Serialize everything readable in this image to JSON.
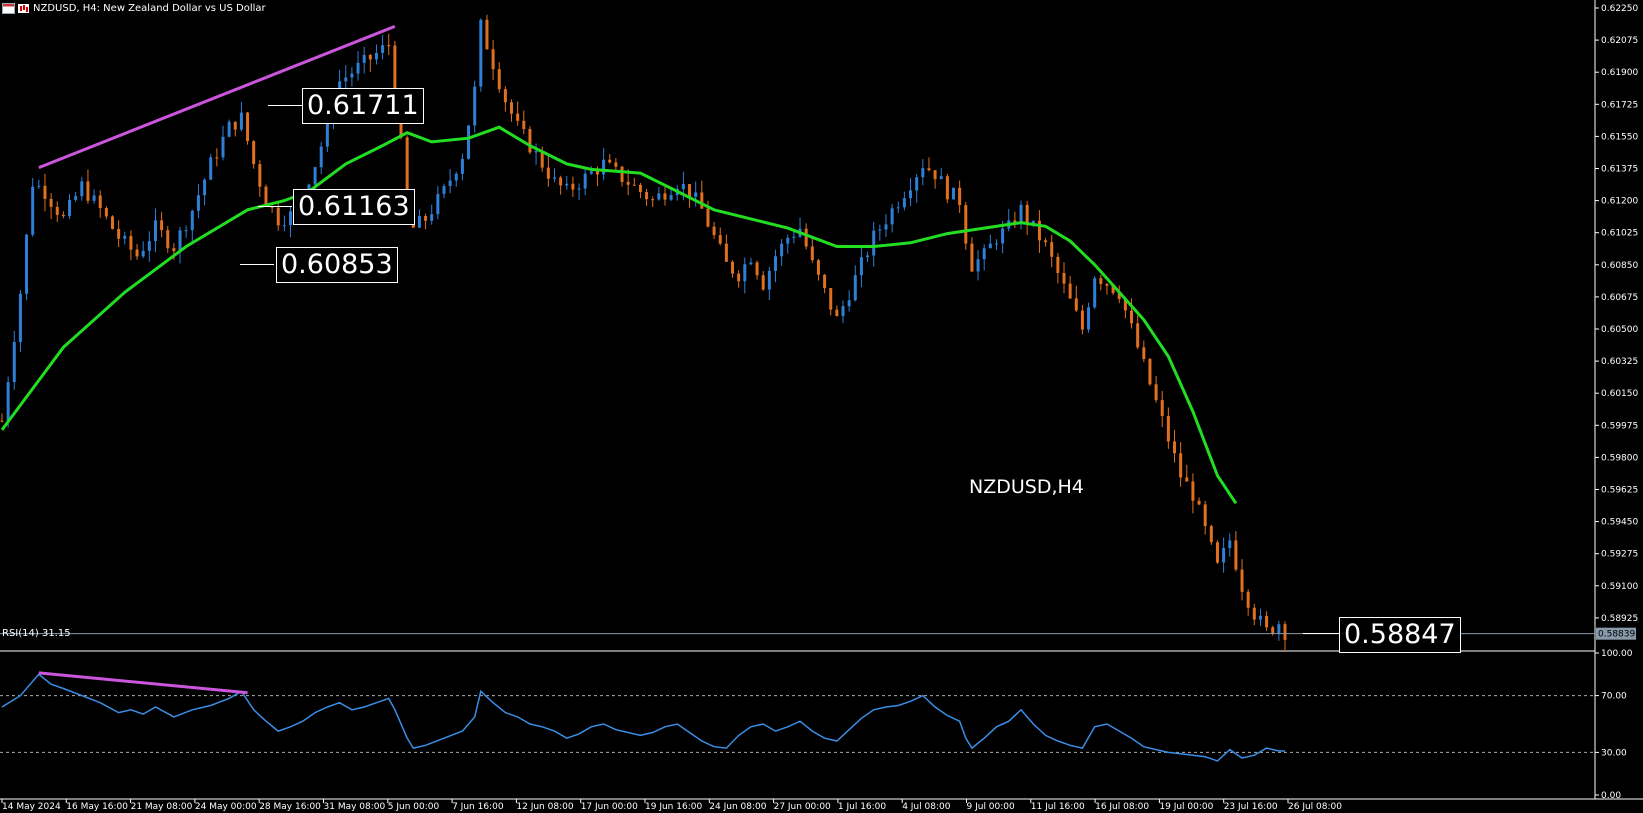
{
  "header": {
    "symbol_line": "NZDUSD, H4:  New Zealand Dollar vs US Dollar",
    "icons": [
      "chart-window-icon",
      "candlestick-icon"
    ]
  },
  "symbol_label": "NZDUSD,H4",
  "price_boxes": [
    {
      "label": "0.61711",
      "value": 0.61711
    },
    {
      "label": "0.61163",
      "value": 0.61163
    },
    {
      "label": "0.60853",
      "value": 0.60853
    },
    {
      "label": "0.58847",
      "value": 0.58847
    }
  ],
  "current_price_tag": "0.58839",
  "rsi_header": "RSI(14) 31.15",
  "colors": {
    "background": "#000000",
    "bull": "#2f7fd6",
    "bear": "#e07020",
    "ma": "#22dd22",
    "trendline": "#cc55dd",
    "rsi_line": "#3a8ee6",
    "axis_text": "#ffffff"
  },
  "chart_data": [
    {
      "type": "candlestick",
      "title": "NZDUSD, H4:  New Zealand Dollar vs US Dollar",
      "ylim": [
        0.5875,
        0.6225
      ],
      "y_ticks": [
        "0.62250",
        "0.62075",
        "0.61900",
        "0.61725",
        "0.61550",
        "0.61375",
        "0.61200",
        "0.61025",
        "0.60850",
        "0.60675",
        "0.60500",
        "0.60325",
        "0.60150",
        "0.59975",
        "0.59800",
        "0.59625",
        "0.59450",
        "0.59275",
        "0.59100",
        "0.58925"
      ],
      "x_ticks": [
        "14 May 2024",
        "16 May 16:00",
        "21 May 08:00",
        "24 May 00:00",
        "28 May 16:00",
        "31 May 08:00",
        "5 Jun 00:00",
        "7 Jun 16:00",
        "12 Jun 08:00",
        "17 Jun 00:00",
        "19 Jun 16:00",
        "24 Jun 08:00",
        "27 Jun 00:00",
        "1 Jul 16:00",
        "4 Jul 08:00",
        "9 Jul 00:00",
        "11 Jul 16:00",
        "16 Jul 08:00",
        "19 Jul 00:00",
        "23 Jul 16:00",
        "26 Jul 08:00"
      ],
      "close_path": [
        [
          0,
          0.6
        ],
        [
          3,
          0.607
        ],
        [
          5,
          0.613
        ],
        [
          7,
          0.6125
        ],
        [
          10,
          0.611
        ],
        [
          13,
          0.6128
        ],
        [
          16,
          0.6115
        ],
        [
          19,
          0.61
        ],
        [
          22,
          0.609
        ],
        [
          25,
          0.6105
        ],
        [
          28,
          0.6095
        ],
        [
          31,
          0.6115
        ],
        [
          34,
          0.614
        ],
        [
          37,
          0.616
        ],
        [
          39,
          0.6165
        ],
        [
          41,
          0.614
        ],
        [
          43,
          0.612
        ],
        [
          45,
          0.611
        ],
        [
          47,
          0.6112
        ],
        [
          49,
          0.6125
        ],
        [
          51,
          0.614
        ],
        [
          53,
          0.616
        ],
        [
          55,
          0.6185
        ],
        [
          57,
          0.619
        ],
        [
          59,
          0.6195
        ],
        [
          61,
          0.62
        ],
        [
          63,
          0.6205
        ],
        [
          64,
          0.618
        ],
        [
          65,
          0.615
        ],
        [
          66,
          0.612
        ],
        [
          67,
          0.6105
        ],
        [
          69,
          0.611
        ],
        [
          72,
          0.6125
        ],
        [
          75,
          0.6145
        ],
        [
          77,
          0.618
        ],
        [
          78,
          0.6215
        ],
        [
          80,
          0.6195
        ],
        [
          82,
          0.6175
        ],
        [
          84,
          0.616
        ],
        [
          86,
          0.615
        ],
        [
          88,
          0.614
        ],
        [
          90,
          0.613
        ],
        [
          92,
          0.6125
        ],
        [
          94,
          0.613
        ],
        [
          96,
          0.6135
        ],
        [
          98,
          0.614
        ],
        [
          100,
          0.6135
        ],
        [
          102,
          0.613
        ],
        [
          104,
          0.6125
        ],
        [
          106,
          0.612
        ],
        [
          108,
          0.6125
        ],
        [
          110,
          0.613
        ],
        [
          112,
          0.6125
        ],
        [
          114,
          0.6115
        ],
        [
          116,
          0.61
        ],
        [
          118,
          0.6085
        ],
        [
          120,
          0.608
        ],
        [
          122,
          0.609
        ],
        [
          124,
          0.6075
        ],
        [
          126,
          0.609
        ],
        [
          128,
          0.61
        ],
        [
          130,
          0.6105
        ],
        [
          132,
          0.6085
        ],
        [
          134,
          0.607
        ],
        [
          136,
          0.6055
        ],
        [
          138,
          0.607
        ],
        [
          140,
          0.6085
        ],
        [
          142,
          0.61
        ],
        [
          144,
          0.611
        ],
        [
          146,
          0.612
        ],
        [
          148,
          0.613
        ],
        [
          150,
          0.614
        ],
        [
          152,
          0.6135
        ],
        [
          154,
          0.6125
        ],
        [
          156,
          0.612
        ],
        [
          157,
          0.61
        ],
        [
          158,
          0.6085
        ],
        [
          160,
          0.609
        ],
        [
          162,
          0.61
        ],
        [
          164,
          0.6105
        ],
        [
          166,
          0.6115
        ],
        [
          168,
          0.6105
        ],
        [
          170,
          0.6095
        ],
        [
          172,
          0.608
        ],
        [
          174,
          0.6065
        ],
        [
          176,
          0.605
        ],
        [
          178,
          0.608
        ],
        [
          180,
          0.6075
        ],
        [
          182,
          0.607
        ],
        [
          184,
          0.605
        ],
        [
          186,
          0.603
        ],
        [
          188,
          0.601
        ],
        [
          190,
          0.599
        ],
        [
          192,
          0.597
        ],
        [
          194,
          0.596
        ],
        [
          196,
          0.594
        ],
        [
          198,
          0.592
        ],
        [
          200,
          0.5935
        ],
        [
          202,
          0.591
        ],
        [
          204,
          0.5895
        ],
        [
          206,
          0.5885
        ],
        [
          208,
          0.589
        ],
        [
          209,
          0.5885
        ]
      ],
      "moving_average": [
        [
          0,
          0.5995
        ],
        [
          10,
          0.604
        ],
        [
          20,
          0.607
        ],
        [
          30,
          0.6095
        ],
        [
          40,
          0.6115
        ],
        [
          46,
          0.612
        ],
        [
          50,
          0.6125
        ],
        [
          56,
          0.614
        ],
        [
          62,
          0.615
        ],
        [
          66,
          0.6157
        ],
        [
          70,
          0.6152
        ],
        [
          76,
          0.6154
        ],
        [
          81,
          0.616
        ],
        [
          86,
          0.615
        ],
        [
          92,
          0.614
        ],
        [
          96,
          0.6137
        ],
        [
          104,
          0.6135
        ],
        [
          110,
          0.6125
        ],
        [
          116,
          0.6115
        ],
        [
          122,
          0.611
        ],
        [
          128,
          0.6105
        ],
        [
          132,
          0.61
        ],
        [
          136,
          0.6095
        ],
        [
          142,
          0.6095
        ],
        [
          148,
          0.6097
        ],
        [
          154,
          0.6102
        ],
        [
          160,
          0.6105
        ],
        [
          166,
          0.6108
        ],
        [
          170,
          0.6106
        ],
        [
          174,
          0.6098
        ],
        [
          178,
          0.6085
        ],
        [
          182,
          0.607
        ],
        [
          186,
          0.6055
        ],
        [
          190,
          0.6035
        ],
        [
          194,
          0.6005
        ],
        [
          198,
          0.597
        ],
        [
          201,
          0.5955
        ]
      ],
      "trendline": [
        [
          6,
          0.6138
        ],
        [
          64,
          0.6215
        ]
      ],
      "price_levels": [
        0.61711,
        0.61163,
        0.60853,
        0.58847
      ],
      "current_price": 0.58839
    },
    {
      "type": "line",
      "title": "RSI(14) 31.15",
      "ylim": [
        0,
        100
      ],
      "y_ticks": [
        "100.00",
        "70.00",
        "30.00",
        "0.00"
      ],
      "levels": [
        70,
        30
      ],
      "series": [
        {
          "name": "RSI(14)",
          "values": [
            [
              0,
              62
            ],
            [
              3,
              70
            ],
            [
              6,
              85
            ],
            [
              8,
              78
            ],
            [
              10,
              75
            ],
            [
              13,
              70
            ],
            [
              16,
              65
            ],
            [
              19,
              58
            ],
            [
              21,
              60
            ],
            [
              23,
              57
            ],
            [
              25,
              62
            ],
            [
              28,
              55
            ],
            [
              31,
              60
            ],
            [
              34,
              63
            ],
            [
              37,
              68
            ],
            [
              39,
              73
            ],
            [
              41,
              60
            ],
            [
              43,
              52
            ],
            [
              45,
              45
            ],
            [
              47,
              48
            ],
            [
              49,
              52
            ],
            [
              51,
              58
            ],
            [
              53,
              62
            ],
            [
              55,
              65
            ],
            [
              57,
              60
            ],
            [
              59,
              62
            ],
            [
              61,
              65
            ],
            [
              63,
              68
            ],
            [
              64,
              60
            ],
            [
              66,
              40
            ],
            [
              67,
              33
            ],
            [
              69,
              35
            ],
            [
              72,
              40
            ],
            [
              75,
              45
            ],
            [
              77,
              55
            ],
            [
              78,
              73
            ],
            [
              80,
              65
            ],
            [
              82,
              58
            ],
            [
              84,
              55
            ],
            [
              86,
              50
            ],
            [
              88,
              48
            ],
            [
              90,
              45
            ],
            [
              92,
              40
            ],
            [
              94,
              43
            ],
            [
              96,
              48
            ],
            [
              98,
              50
            ],
            [
              100,
              46
            ],
            [
              102,
              44
            ],
            [
              104,
              42
            ],
            [
              106,
              44
            ],
            [
              108,
              48
            ],
            [
              110,
              50
            ],
            [
              112,
              44
            ],
            [
              114,
              38
            ],
            [
              116,
              34
            ],
            [
              118,
              33
            ],
            [
              120,
              42
            ],
            [
              122,
              48
            ],
            [
              124,
              50
            ],
            [
              126,
              45
            ],
            [
              128,
              48
            ],
            [
              130,
              52
            ],
            [
              132,
              45
            ],
            [
              134,
              40
            ],
            [
              136,
              38
            ],
            [
              138,
              46
            ],
            [
              140,
              54
            ],
            [
              142,
              60
            ],
            [
              144,
              62
            ],
            [
              146,
              63
            ],
            [
              148,
              66
            ],
            [
              150,
              70
            ],
            [
              152,
              62
            ],
            [
              154,
              56
            ],
            [
              156,
              52
            ],
            [
              157,
              40
            ],
            [
              158,
              33
            ],
            [
              160,
              40
            ],
            [
              162,
              48
            ],
            [
              164,
              52
            ],
            [
              166,
              60
            ],
            [
              168,
              50
            ],
            [
              170,
              42
            ],
            [
              172,
              38
            ],
            [
              174,
              35
            ],
            [
              176,
              33
            ],
            [
              178,
              48
            ],
            [
              180,
              50
            ],
            [
              182,
              45
            ],
            [
              184,
              40
            ],
            [
              186,
              34
            ],
            [
              188,
              32
            ],
            [
              190,
              30
            ],
            [
              192,
              29
            ],
            [
              194,
              28
            ],
            [
              196,
              27
            ],
            [
              198,
              24
            ],
            [
              200,
              32
            ],
            [
              202,
              26
            ],
            [
              204,
              28
            ],
            [
              206,
              33
            ],
            [
              208,
              31
            ],
            [
              209,
              31
            ]
          ]
        }
      ],
      "trendline": [
        [
          6,
          86
        ],
        [
          40,
          72
        ]
      ]
    }
  ]
}
